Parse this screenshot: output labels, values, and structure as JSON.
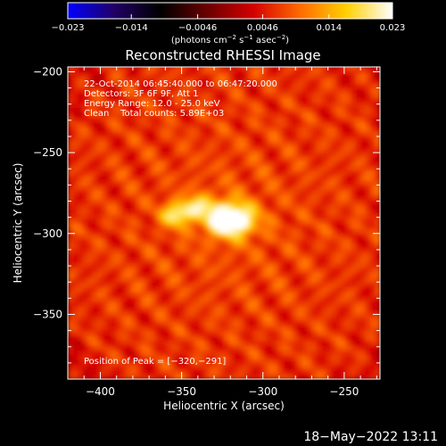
{
  "chart_data": {
    "type": "heatmap",
    "title": "Reconstructed RHESSI Image",
    "xlabel": "Heliocentric X (arcsec)",
    "ylabel": "Heliocentric Y (arcsec)",
    "xlim": [
      -420,
      -228
    ],
    "ylim": [
      -390,
      -197
    ],
    "x_ticks": [
      -400,
      -350,
      -300,
      -250
    ],
    "y_ticks": [
      -350,
      -300,
      -250,
      -200
    ],
    "x_tick_labels": [
      "−400",
      "−350",
      "−300",
      "−250"
    ],
    "y_tick_labels": [
      "−350",
      "−300",
      "−250",
      "−200"
    ],
    "colorbar": {
      "range": [
        -0.023,
        0.023
      ],
      "ticks": [
        -0.023,
        -0.014,
        -0.0046,
        0.0046,
        0.014,
        0.023
      ],
      "tick_labels": [
        "−0.023",
        "−0.014",
        "−0.0046",
        "0.0046",
        "0.014",
        "0.023"
      ],
      "unit_main": "(photons cm",
      "unit_exp1": "−2",
      "unit_mid1": " s",
      "unit_exp2": "−1",
      "unit_mid2": " asec",
      "unit_exp3": "−2",
      "unit_end": ")",
      "colormap": [
        "#0000ff",
        "#220066",
        "#000000",
        "#6a0000",
        "#d40000",
        "#ff6a00",
        "#ffd000",
        "#ffffff"
      ]
    },
    "annotations": [
      "22-Oct-2014 06:45:40.000 to 06:47:20.000",
      "Detectors: 3F 6F 9F, Att 1",
      "Energy Range: 12.0 - 25.0 keV",
      "Clean    Total counts: 5.89E+03"
    ],
    "peak_label": "Position of Peak = [−320,−291]",
    "peak": {
      "x": -320,
      "y": -291,
      "value": 0.023
    },
    "sources": [
      {
        "x": -320,
        "y": -291,
        "value": 0.023,
        "sx": 10,
        "sy": 7
      },
      {
        "x": -353,
        "y": -288,
        "value": 0.014,
        "sx": 6,
        "sy": 5
      },
      {
        "x": -340,
        "y": -283,
        "value": 0.01,
        "sx": 7,
        "sy": 5
      }
    ],
    "background_level": 0.006
  },
  "timestamp": "18−May−2022 13:11"
}
